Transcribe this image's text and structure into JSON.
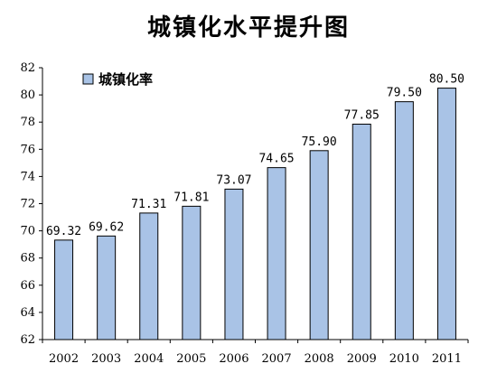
{
  "chart_data": {
    "type": "bar",
    "title": "城镇化水平提升图",
    "categories": [
      "2002",
      "2003",
      "2004",
      "2005",
      "2006",
      "2007",
      "2008",
      "2009",
      "2010",
      "2011"
    ],
    "series": [
      {
        "name": "城镇化率",
        "values": [
          69.32,
          69.62,
          71.31,
          71.81,
          73.07,
          74.65,
          75.9,
          77.85,
          79.5,
          80.5
        ]
      }
    ],
    "data_labels": [
      "69.32",
      "69.62",
      "71.31",
      "71.81",
      "73.07",
      "74.65",
      "75.90",
      "77.85",
      "79.50",
      "80.50"
    ],
    "ylim": [
      62,
      82
    ],
    "yticks": [
      "62",
      "64",
      "66",
      "68",
      "70",
      "72",
      "74",
      "76",
      "78",
      "80",
      "82"
    ],
    "xlabel": "",
    "ylabel": "",
    "grid": false,
    "legend_position": "top-left",
    "colors": {
      "bar_fill": "#a9c3e6",
      "bar_stroke": "#000000",
      "axis": "#000000"
    }
  }
}
